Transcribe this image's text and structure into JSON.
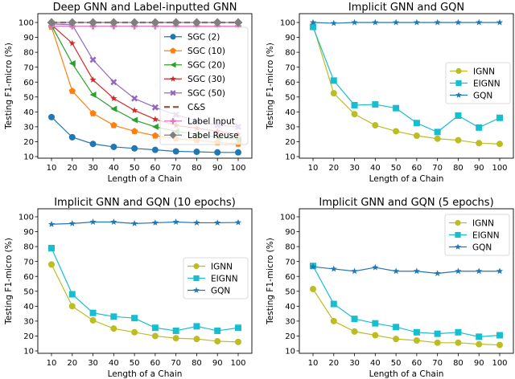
{
  "chart_data": [
    {
      "type": "line",
      "title": "Deep GNN and Label-inputted GNN",
      "xlabel": "Length of a Chain",
      "ylabel": "Testing F1-micro (%)",
      "x": [
        10,
        20,
        30,
        40,
        50,
        60,
        70,
        80,
        90,
        100
      ],
      "xticks": [
        "10",
        "20",
        "30",
        "40",
        "50",
        "60",
        "70",
        "80",
        "90",
        "100"
      ],
      "yticks": [
        "10",
        "20",
        "30",
        "40",
        "50",
        "60",
        "70",
        "80",
        "90",
        "100"
      ],
      "ylim": [
        10,
        100
      ],
      "grid": false,
      "legend_position": "right",
      "series": [
        {
          "name": "SGC (2)",
          "color": "#1f77b4",
          "marker": "circle",
          "dash": false,
          "values": [
            36.5,
            23,
            18.5,
            16.5,
            15.5,
            14.5,
            13.5,
            13.2,
            12.8,
            12.8
          ]
        },
        {
          "name": "SGC (10)",
          "color": "#ff7f0e",
          "marker": "pentagon",
          "dash": false,
          "values": [
            97,
            54,
            39,
            31,
            27,
            24,
            22,
            21,
            19.5,
            18.5
          ]
        },
        {
          "name": "SGC (20)",
          "color": "#2ca02c",
          "marker": "triangle-left",
          "dash": false,
          "values": [
            98,
            72.5,
            51.5,
            42,
            34.5,
            30,
            27,
            25,
            23,
            21.5
          ]
        },
        {
          "name": "SGC (30)",
          "color": "#d62728",
          "marker": "star",
          "dash": false,
          "values": [
            98.5,
            86,
            61.5,
            49,
            41,
            35,
            31,
            29,
            27,
            25
          ]
        },
        {
          "name": "SGC (50)",
          "color": "#9467bd",
          "marker": "x-filled",
          "dash": false,
          "values": [
            99,
            98.5,
            75,
            60,
            49,
            43,
            38,
            34,
            31,
            30
          ]
        },
        {
          "name": "C&S",
          "color": "#8c564b",
          "marker": "none",
          "dash": true,
          "values": [
            100,
            100,
            100,
            100,
            100,
            100,
            100,
            100,
            100,
            100
          ]
        },
        {
          "name": "Label Input",
          "color": "#e377c2",
          "marker": "plus",
          "dash": false,
          "values": [
            97.5,
            97.5,
            97.5,
            97.5,
            97.5,
            97.5,
            97.5,
            97.5,
            97.5,
            97.5
          ]
        },
        {
          "name": "Label Reuse",
          "color": "#7f7f7f",
          "marker": "diamond",
          "dash": false,
          "values": [
            100,
            100,
            100,
            100,
            100,
            100,
            100,
            100,
            100,
            100
          ]
        }
      ]
    },
    {
      "type": "line",
      "title": "Implicit GNN and GQN",
      "xlabel": "Length of a Chain",
      "ylabel": "Testing F1-micro (%)",
      "x": [
        10,
        20,
        30,
        40,
        50,
        60,
        70,
        80,
        90,
        100
      ],
      "xticks": [
        "10",
        "20",
        "30",
        "40",
        "50",
        "60",
        "70",
        "80",
        "90",
        "100"
      ],
      "yticks": [
        "10",
        "20",
        "30",
        "40",
        "50",
        "60",
        "70",
        "80",
        "90",
        "100"
      ],
      "ylim": [
        10,
        100
      ],
      "grid": false,
      "legend_position": "center-right",
      "series": [
        {
          "name": "IGNN",
          "color": "#bcbd22",
          "marker": "circle",
          "dash": false,
          "values": [
            98,
            52.5,
            38.5,
            31,
            27,
            24,
            22,
            21,
            19,
            18.5
          ]
        },
        {
          "name": "EIGNN",
          "color": "#17becf",
          "marker": "square",
          "dash": false,
          "values": [
            97,
            61,
            44.5,
            45,
            42.5,
            32.5,
            26.5,
            37.5,
            29.5,
            36
          ]
        },
        {
          "name": "GQN",
          "color": "#1f77b4",
          "marker": "star",
          "dash": false,
          "values": [
            100,
            99.5,
            100,
            100,
            100,
            100,
            100,
            100,
            100,
            100
          ]
        }
      ]
    },
    {
      "type": "line",
      "title": "Implicit GNN and GQN (10 epochs)",
      "xlabel": "Length of a Chain",
      "ylabel": "Testing F1-micro (%)",
      "x": [
        10,
        20,
        30,
        40,
        50,
        60,
        70,
        80,
        90,
        100
      ],
      "xticks": [
        "10",
        "20",
        "30",
        "40",
        "50",
        "60",
        "70",
        "80",
        "90",
        "100"
      ],
      "yticks": [
        "10",
        "20",
        "30",
        "40",
        "50",
        "60",
        "70",
        "80",
        "90",
        "100"
      ],
      "ylim": [
        10,
        100
      ],
      "grid": false,
      "legend_position": "center-right",
      "series": [
        {
          "name": "IGNN",
          "color": "#bcbd22",
          "marker": "circle",
          "dash": false,
          "values": [
            68,
            40,
            30.5,
            25,
            22.5,
            20,
            18.5,
            18,
            16.5,
            16
          ]
        },
        {
          "name": "EIGNN",
          "color": "#17becf",
          "marker": "square",
          "dash": false,
          "values": [
            79,
            48,
            35.5,
            33,
            32,
            25.5,
            23.5,
            26.5,
            23.5,
            25.5
          ]
        },
        {
          "name": "GQN",
          "color": "#1f77b4",
          "marker": "star",
          "dash": false,
          "values": [
            95,
            95.5,
            96.5,
            96.5,
            95.5,
            96,
            96.5,
            96,
            96,
            96.2
          ]
        }
      ]
    },
    {
      "type": "line",
      "title": "Implicit GNN and GQN (5 epochs)",
      "xlabel": "Length of a Chain",
      "ylabel": "Testing F1-micro (%)",
      "x": [
        10,
        20,
        30,
        40,
        50,
        60,
        70,
        80,
        90,
        100
      ],
      "xticks": [
        "10",
        "20",
        "30",
        "40",
        "50",
        "60",
        "70",
        "80",
        "90",
        "100"
      ],
      "yticks": [
        "10",
        "20",
        "30",
        "40",
        "50",
        "60",
        "70",
        "80",
        "90",
        "100"
      ],
      "ylim": [
        10,
        100
      ],
      "grid": false,
      "legend_position": "top-right",
      "series": [
        {
          "name": "IGNN",
          "color": "#bcbd22",
          "marker": "circle",
          "dash": false,
          "values": [
            51.5,
            30,
            23,
            20.5,
            18,
            17,
            15.5,
            15.5,
            14.5,
            14
          ]
        },
        {
          "name": "EIGNN",
          "color": "#17becf",
          "marker": "square",
          "dash": false,
          "values": [
            67,
            41.5,
            31.5,
            28.5,
            26,
            22.5,
            21.5,
            22.5,
            19.5,
            20.5
          ]
        },
        {
          "name": "GQN",
          "color": "#1f77b4",
          "marker": "star",
          "dash": false,
          "values": [
            66.5,
            65,
            63.5,
            66,
            63.5,
            63.5,
            62,
            63.5,
            63.5,
            63.5
          ]
        }
      ]
    }
  ]
}
